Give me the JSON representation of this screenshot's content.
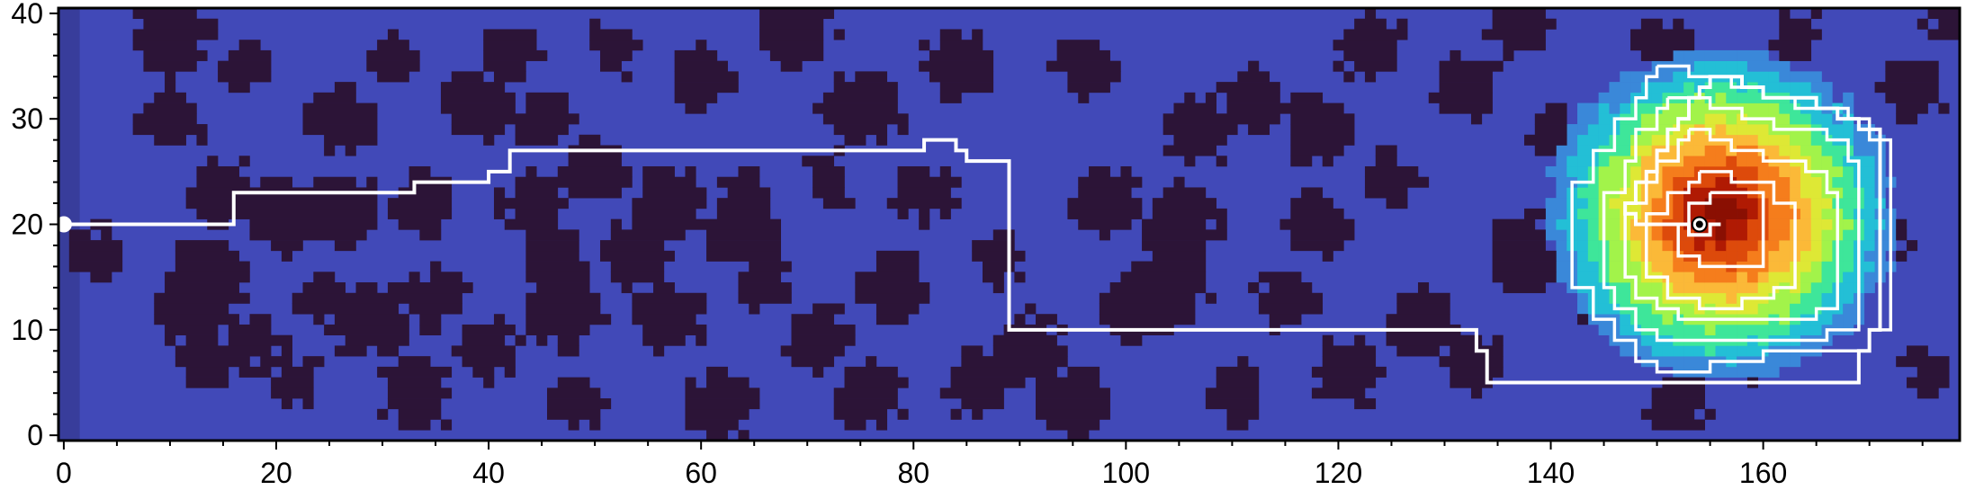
{
  "chart_data": {
    "type": "heatmap",
    "title": "",
    "xlabel": "",
    "ylabel": "",
    "xlim": [
      -0.5,
      178.5
    ],
    "ylim": [
      -0.5,
      40.5
    ],
    "x_major_ticks": [
      0,
      20,
      40,
      60,
      80,
      100,
      120,
      140,
      160
    ],
    "y_major_ticks": [
      0,
      10,
      20,
      30,
      40
    ],
    "x_minor_step": 5,
    "y_minor_step": 2,
    "grid": false,
    "legend": "none",
    "colors": {
      "free_space": "#4149b8",
      "obstacle": "#2c1437",
      "left_strip": "#383d9b",
      "path": "#ffffff",
      "contour": "#ffffff",
      "marker_fill": "#ffffff",
      "goal_fill": "#000000"
    },
    "heat_palette": [
      "#3a88d9",
      "#23bfd6",
      "#3ee69a",
      "#a2f34a",
      "#dee835",
      "#fbb938",
      "#f57d1c",
      "#dd4a0b",
      "#b01a03",
      "#8a0f02"
    ],
    "heat_source": {
      "x": 156,
      "y": 21
    },
    "obstacle_blobs": [
      [
        3,
        17
      ],
      [
        10,
        38
      ],
      [
        12,
        12
      ],
      [
        10,
        30
      ],
      [
        13,
        7
      ],
      [
        18,
        9
      ],
      [
        17,
        35
      ],
      [
        15,
        23
      ],
      [
        21,
        21
      ],
      [
        22,
        5
      ],
      [
        24,
        13
      ],
      [
        26,
        30
      ],
      [
        29,
        11
      ],
      [
        31,
        36
      ],
      [
        33,
        4
      ],
      [
        34,
        22
      ],
      [
        35,
        13
      ],
      [
        39,
        31
      ],
      [
        40,
        8
      ],
      [
        42,
        36
      ],
      [
        44,
        22
      ],
      [
        47,
        12
      ],
      [
        45,
        30
      ],
      [
        48,
        3
      ],
      [
        50,
        25
      ],
      [
        52,
        37
      ],
      [
        54,
        17
      ],
      [
        57,
        11
      ],
      [
        57,
        22
      ],
      [
        60,
        34
      ],
      [
        62,
        3
      ],
      [
        64,
        23
      ],
      [
        66,
        14
      ],
      [
        69,
        38
      ],
      [
        71,
        9
      ],
      [
        72,
        24
      ],
      [
        75,
        31
      ],
      [
        76,
        4
      ],
      [
        78,
        14
      ],
      [
        81,
        23
      ],
      [
        84,
        35
      ],
      [
        88,
        17
      ],
      [
        91,
        8
      ],
      [
        95,
        3
      ],
      [
        96,
        35
      ],
      [
        98,
        22
      ],
      [
        101,
        12
      ],
      [
        105,
        20
      ],
      [
        107,
        29
      ],
      [
        110,
        4
      ],
      [
        112,
        32
      ],
      [
        115,
        13
      ],
      [
        118,
        20
      ],
      [
        121,
        6
      ],
      [
        123,
        37
      ],
      [
        125,
        24
      ],
      [
        128,
        11
      ],
      [
        132,
        33
      ],
      [
        133,
        7
      ],
      [
        138,
        17
      ],
      [
        140,
        29
      ],
      [
        146,
        12
      ],
      [
        150,
        37
      ],
      [
        152,
        3
      ],
      [
        158,
        8
      ],
      [
        163,
        38
      ],
      [
        170,
        19
      ],
      [
        174,
        33
      ],
      [
        176,
        6
      ],
      [
        178,
        39
      ],
      [
        86,
        5
      ],
      [
        104,
        14
      ],
      [
        64,
        19
      ],
      [
        118,
        29
      ],
      [
        26,
        21
      ],
      [
        143,
        23
      ],
      [
        137,
        39
      ],
      [
        46,
        17
      ],
      [
        14,
        15
      ]
    ],
    "path": [
      [
        0,
        20
      ],
      [
        16,
        20
      ],
      [
        16,
        23
      ],
      [
        33,
        23
      ],
      [
        33,
        24
      ],
      [
        40,
        24
      ],
      [
        40,
        25
      ],
      [
        42,
        25
      ],
      [
        42,
        27
      ],
      [
        81,
        27
      ],
      [
        81,
        28
      ],
      [
        84,
        28
      ],
      [
        84,
        27
      ],
      [
        85,
        27
      ],
      [
        85,
        26
      ],
      [
        89,
        26
      ],
      [
        89,
        10
      ],
      [
        133,
        10
      ],
      [
        133,
        8
      ],
      [
        134,
        8
      ],
      [
        134,
        5
      ],
      [
        169,
        5
      ],
      [
        169,
        8
      ],
      [
        170,
        8
      ],
      [
        170,
        10
      ],
      [
        171,
        10
      ],
      [
        171,
        29
      ],
      [
        169,
        29
      ],
      [
        169,
        30
      ],
      [
        167,
        30
      ],
      [
        167,
        31
      ],
      [
        165,
        31
      ],
      [
        165,
        32
      ],
      [
        160,
        32
      ],
      [
        160,
        33
      ],
      [
        158,
        33
      ],
      [
        158,
        34
      ],
      [
        155,
        34
      ],
      [
        155,
        33
      ],
      [
        154,
        33
      ],
      [
        154,
        32
      ],
      [
        153,
        32
      ],
      [
        153,
        30
      ],
      [
        152,
        30
      ],
      [
        152,
        29
      ],
      [
        151,
        29
      ],
      [
        151,
        27
      ],
      [
        150,
        27
      ],
      [
        150,
        25
      ],
      [
        149,
        25
      ],
      [
        149,
        24
      ],
      [
        148,
        24
      ],
      [
        148,
        22
      ],
      [
        147,
        22
      ],
      [
        147,
        21
      ],
      [
        148,
        21
      ],
      [
        148,
        20
      ],
      [
        153,
        20
      ],
      [
        153,
        19
      ],
      [
        155,
        19
      ],
      [
        155,
        20
      ],
      [
        156,
        20
      ]
    ],
    "contours": [
      [
        [
          150,
          35
        ],
        [
          153,
          35
        ],
        [
          153,
          34
        ],
        [
          157,
          34
        ],
        [
          157,
          33
        ],
        [
          160,
          33
        ],
        [
          160,
          32
        ],
        [
          163,
          32
        ],
        [
          163,
          31
        ],
        [
          168,
          31
        ],
        [
          168,
          30
        ],
        [
          170,
          30
        ],
        [
          170,
          28
        ],
        [
          172,
          28
        ],
        [
          172,
          10
        ],
        [
          170,
          10
        ],
        [
          170,
          8
        ],
        [
          160,
          8
        ],
        [
          160,
          7
        ],
        [
          155,
          7
        ],
        [
          155,
          6
        ],
        [
          150,
          6
        ],
        [
          150,
          7
        ],
        [
          148,
          7
        ],
        [
          148,
          9
        ],
        [
          146,
          9
        ],
        [
          146,
          11
        ],
        [
          144,
          11
        ],
        [
          144,
          14
        ],
        [
          142,
          14
        ],
        [
          142,
          24
        ],
        [
          144,
          24
        ],
        [
          144,
          27
        ],
        [
          146,
          27
        ],
        [
          146,
          30
        ],
        [
          148,
          30
        ],
        [
          148,
          32
        ],
        [
          149,
          32
        ],
        [
          149,
          34
        ],
        [
          150,
          34
        ],
        [
          150,
          35
        ]
      ],
      [
        [
          151,
          32
        ],
        [
          155,
          32
        ],
        [
          155,
          31
        ],
        [
          158,
          31
        ],
        [
          158,
          30
        ],
        [
          161,
          30
        ],
        [
          161,
          29
        ],
        [
          166,
          29
        ],
        [
          166,
          28
        ],
        [
          168,
          28
        ],
        [
          168,
          26
        ],
        [
          169,
          26
        ],
        [
          169,
          10
        ],
        [
          166,
          10
        ],
        [
          166,
          9
        ],
        [
          150,
          9
        ],
        [
          150,
          10
        ],
        [
          148,
          10
        ],
        [
          148,
          12
        ],
        [
          146,
          12
        ],
        [
          146,
          14
        ],
        [
          145,
          14
        ],
        [
          145,
          23
        ],
        [
          147,
          23
        ],
        [
          147,
          26
        ],
        [
          148,
          26
        ],
        [
          148,
          29
        ],
        [
          150,
          29
        ],
        [
          150,
          31
        ],
        [
          151,
          31
        ],
        [
          151,
          32
        ]
      ],
      [
        [
          153,
          29
        ],
        [
          155,
          29
        ],
        [
          155,
          28
        ],
        [
          157,
          28
        ],
        [
          157,
          27
        ],
        [
          160,
          27
        ],
        [
          160,
          26
        ],
        [
          164,
          26
        ],
        [
          164,
          25
        ],
        [
          166,
          25
        ],
        [
          166,
          23
        ],
        [
          167,
          23
        ],
        [
          167,
          12
        ],
        [
          165,
          12
        ],
        [
          165,
          11
        ],
        [
          152,
          11
        ],
        [
          152,
          12
        ],
        [
          150,
          12
        ],
        [
          150,
          13
        ],
        [
          148,
          13
        ],
        [
          148,
          15
        ],
        [
          147,
          15
        ],
        [
          147,
          22
        ],
        [
          149,
          22
        ],
        [
          149,
          24
        ],
        [
          150,
          24
        ],
        [
          150,
          26
        ],
        [
          152,
          26
        ],
        [
          152,
          28
        ],
        [
          153,
          28
        ],
        [
          153,
          29
        ]
      ],
      [
        [
          154,
          25
        ],
        [
          157,
          25
        ],
        [
          157,
          24
        ],
        [
          161,
          24
        ],
        [
          161,
          22
        ],
        [
          163,
          22
        ],
        [
          163,
          14
        ],
        [
          161,
          14
        ],
        [
          161,
          13
        ],
        [
          158,
          13
        ],
        [
          158,
          12
        ],
        [
          154,
          12
        ],
        [
          154,
          13
        ],
        [
          151,
          13
        ],
        [
          151,
          15
        ],
        [
          149,
          15
        ],
        [
          149,
          21
        ],
        [
          151,
          21
        ],
        [
          151,
          23
        ],
        [
          153,
          23
        ],
        [
          153,
          24
        ],
        [
          154,
          24
        ],
        [
          154,
          25
        ]
      ],
      [
        [
          155,
          23
        ],
        [
          160,
          23
        ],
        [
          160,
          16
        ],
        [
          154,
          16
        ],
        [
          154,
          17
        ],
        [
          152,
          17
        ],
        [
          152,
          20
        ],
        [
          153,
          20
        ],
        [
          153,
          22
        ],
        [
          155,
          22
        ],
        [
          155,
          23
        ]
      ]
    ],
    "start": {
      "x": 0,
      "y": 20
    },
    "goal": {
      "x": 154,
      "y": 20
    }
  }
}
